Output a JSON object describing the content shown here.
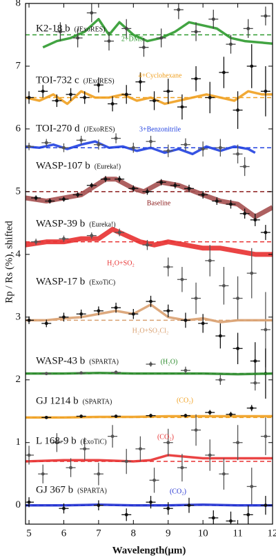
{
  "chart_data": {
    "type": "spectra",
    "xlabel": "Wavelength(μm)",
    "ylabel": "Rp / Rs (%), shifted",
    "xlim": [
      4.9,
      12
    ],
    "ylim": [
      -0.3,
      8
    ],
    "xticks": [
      5,
      6,
      7,
      8,
      9,
      10,
      11,
      12
    ],
    "yticks": [
      0,
      1,
      2,
      3,
      4,
      5,
      6,
      7,
      8
    ],
    "series": [
      {
        "name": "K2-18 b",
        "source": "(JExoRES)",
        "model": "2+DMS",
        "color": "#2e9a2e",
        "baseline": 7.5,
        "point_color": "#444",
        "model_x": [
          5.4,
          5.8,
          6.2,
          6.6,
          7.0,
          7.3,
          7.6,
          8.0,
          8.4,
          8.8,
          9.2,
          9.6,
          10.0,
          10.4,
          10.8,
          11.2,
          11.6,
          12.0
        ],
        "model_values": [
          7.3,
          7.4,
          7.45,
          7.55,
          7.75,
          7.5,
          7.7,
          7.5,
          7.4,
          7.45,
          7.55,
          7.7,
          7.65,
          7.6,
          7.45,
          7.4,
          7.38,
          7.36
        ],
        "x": [
          5.9,
          6.4,
          6.8,
          7.3,
          7.8,
          8.3,
          8.8,
          9.3,
          9.8,
          10.3,
          10.8,
          11.3,
          11.8
        ],
        "values": [
          7.55,
          7.45,
          7.85,
          7.4,
          7.6,
          7.3,
          7.45,
          7.9,
          7.55,
          7.75,
          7.35,
          7.6,
          7.8
        ],
        "errors": [
          0.15,
          0.15,
          0.15,
          0.15,
          0.15,
          0.15,
          0.15,
          0.15,
          0.15,
          0.15,
          0.15,
          0.15,
          0.15
        ]
      },
      {
        "name": "TOI-732 c",
        "source": "(JExoRES)",
        "model": "4+Cyclohexane",
        "color": "#f0a020",
        "baseline": 6.5,
        "point_color": "#111",
        "model_x": [
          4.9,
          5.3,
          5.7,
          6.1,
          6.5,
          6.9,
          7.3,
          7.7,
          8.1,
          8.5,
          8.9,
          9.3,
          9.7,
          10.1,
          10.5,
          10.9,
          11.3,
          11.7,
          12.0
        ],
        "model_values": [
          6.5,
          6.45,
          6.55,
          6.4,
          6.6,
          6.5,
          6.5,
          6.55,
          6.45,
          6.5,
          6.4,
          6.45,
          6.5,
          6.55,
          6.5,
          6.45,
          6.6,
          6.55,
          6.55
        ],
        "x": [
          5.0,
          5.4,
          5.8,
          6.2,
          6.6,
          7.0,
          7.4,
          7.8,
          8.2,
          8.6,
          9.0,
          9.4,
          9.8,
          10.2,
          10.6,
          11.0,
          11.4,
          11.8
        ],
        "values": [
          6.5,
          6.6,
          6.45,
          6.55,
          6.5,
          6.7,
          6.4,
          6.55,
          6.75,
          6.45,
          6.6,
          6.35,
          6.8,
          6.5,
          6.9,
          6.3,
          7.0,
          6.6
        ],
        "errors": [
          0.1,
          0.1,
          0.1,
          0.1,
          0.1,
          0.12,
          0.12,
          0.15,
          0.15,
          0.15,
          0.2,
          0.2,
          0.2,
          0.25,
          0.25,
          0.3,
          0.35,
          0.4
        ]
      },
      {
        "name": "TOI-270 d",
        "source": "(JExoRES)",
        "model": "3+Benzonitrile",
        "color": "#2040e0",
        "baseline": 5.7,
        "point_color": "#555",
        "model_x": [
          4.9,
          5.3,
          5.7,
          6.1,
          6.5,
          6.9,
          7.3,
          7.7,
          8.1,
          8.5,
          8.9,
          9.3,
          9.7,
          10.1,
          10.5,
          10.9,
          11.3,
          11.5
        ],
        "model_values": [
          5.72,
          5.7,
          5.75,
          5.68,
          5.75,
          5.8,
          5.7,
          5.72,
          5.65,
          5.7,
          5.62,
          5.68,
          5.6,
          5.72,
          5.65,
          5.72,
          5.68,
          5.62
        ],
        "x": [
          5.0,
          5.5,
          6.0,
          6.5,
          7.0,
          7.5,
          8.0,
          8.5,
          9.0,
          9.5,
          10.0,
          10.5,
          11.0,
          11.2
        ],
        "values": [
          5.72,
          5.78,
          5.7,
          5.82,
          5.75,
          5.85,
          5.7,
          5.8,
          5.65,
          5.75,
          5.68,
          5.7,
          5.6,
          5.4
        ],
        "errors": [
          0.06,
          0.06,
          0.07,
          0.07,
          0.08,
          0.08,
          0.08,
          0.09,
          0.1,
          0.1,
          0.12,
          0.14,
          0.15,
          0.15
        ]
      },
      {
        "name": "WASP-107 b",
        "source": "(Eureka!)",
        "model": "Baseline",
        "color": "#a55050",
        "baseline": 5.0,
        "point_color": "#111",
        "model_x": [
          4.9,
          5.5,
          6.5,
          7.2,
          7.5,
          8.0,
          8.3,
          8.8,
          9.3,
          10.0,
          10.5,
          11.0,
          11.5,
          12.0
        ],
        "model_values": [
          4.9,
          4.85,
          4.95,
          5.2,
          5.2,
          5.05,
          5.0,
          5.15,
          5.1,
          4.95,
          4.85,
          4.8,
          4.6,
          4.75
        ],
        "x": [
          5.2,
          5.6,
          6.0,
          6.4,
          6.8,
          7.2,
          7.6,
          8.0,
          8.4,
          8.8,
          9.2,
          9.6,
          10.0,
          10.4,
          10.8,
          11.2,
          11.5,
          11.8
        ],
        "values": [
          4.9,
          4.85,
          4.88,
          4.95,
          5.1,
          5.2,
          5.2,
          5.05,
          5.0,
          5.15,
          5.1,
          5.05,
          4.95,
          4.85,
          4.8,
          4.65,
          4.55,
          4.35
        ],
        "errors": [
          0.04,
          0.04,
          0.04,
          0.04,
          0.04,
          0.05,
          0.05,
          0.05,
          0.05,
          0.05,
          0.05,
          0.06,
          0.06,
          0.06,
          0.07,
          0.08,
          0.1,
          0.12
        ]
      },
      {
        "name": "WASP-39 b",
        "source": "(Eureka!)",
        "model": "H₂O+SO₂",
        "color": "#e83030",
        "baseline": 4.2,
        "point_color": "#555",
        "model_x": [
          4.9,
          5.5,
          6.0,
          6.5,
          7.0,
          7.4,
          7.8,
          8.2,
          8.6,
          9.0,
          9.5,
          10.0,
          10.5,
          11.0,
          11.5,
          12.0
        ],
        "model_values": [
          4.15,
          4.2,
          4.2,
          4.25,
          4.25,
          4.4,
          4.3,
          4.2,
          4.15,
          4.2,
          4.15,
          4.1,
          4.1,
          4.05,
          4.0,
          4.0
        ],
        "x": [
          5.2,
          6.0,
          6.8,
          7.6,
          8.4,
          9.0,
          9.4,
          9.8,
          10.2,
          10.6,
          11.0,
          11.4,
          11.8
        ],
        "values": [
          4.2,
          4.25,
          4.3,
          4.35,
          4.15,
          3.8,
          3.6,
          3.3,
          3.9,
          3.5,
          3.3,
          3.7,
          2.8
        ],
        "errors": [
          0.05,
          0.05,
          0.05,
          0.06,
          0.08,
          0.15,
          0.2,
          0.25,
          0.25,
          0.3,
          0.35,
          0.4,
          0.6
        ]
      },
      {
        "name": "WASP-17 b",
        "source": "(ExoTiC)",
        "model": "H₂O+SO₂Cl₂",
        "color": "#d9a070",
        "baseline": 2.95,
        "point_color": "#111",
        "model_x": [
          4.9,
          5.5,
          6.0,
          6.5,
          7.0,
          7.5,
          8.0,
          8.5,
          9.0,
          9.5,
          10.0,
          10.5,
          11.0,
          11.5,
          12.0
        ],
        "model_values": [
          2.95,
          2.95,
          2.98,
          3.0,
          3.05,
          3.1,
          3.05,
          3.2,
          3.0,
          2.95,
          2.98,
          2.92,
          2.95,
          2.95,
          2.95
        ],
        "x": [
          5.0,
          5.5,
          6.0,
          6.5,
          7.0,
          7.5,
          8.0,
          8.5,
          9.0,
          9.5,
          10.0,
          10.5,
          11.0,
          11.5,
          11.8
        ],
        "values": [
          2.95,
          2.9,
          3.0,
          3.05,
          3.1,
          3.15,
          3.05,
          3.25,
          3.1,
          2.95,
          2.9,
          2.7,
          2.5,
          2.3,
          2.1
        ],
        "errors": [
          0.06,
          0.06,
          0.07,
          0.07,
          0.07,
          0.08,
          0.08,
          0.09,
          0.1,
          0.12,
          0.15,
          0.2,
          0.25,
          0.3,
          0.4
        ]
      },
      {
        "name": "WASP-43 b",
        "source": "(SPARTA)",
        "model": "(H₂O)",
        "color": "#2a8a2a",
        "baseline": 2.1,
        "point_color": "#555",
        "model_x": [
          4.9,
          6,
          7,
          8,
          9,
          10,
          11,
          12
        ],
        "model_values": [
          2.1,
          2.1,
          2.11,
          2.1,
          2.1,
          2.1,
          2.09,
          2.1
        ],
        "x": [
          5.5,
          6.5,
          7.5,
          8.5,
          9.5,
          10.5,
          11.5
        ],
        "values": [
          2.1,
          2.11,
          2.12,
          2.25,
          2.15,
          2.0,
          1.95
        ],
        "errors": [
          0.02,
          0.02,
          0.03,
          0.04,
          0.06,
          0.08,
          0.12
        ]
      },
      {
        "name": "GJ 1214 b",
        "source": "(SPARTA)",
        "model": "(CO₂)",
        "color": "#f0a020",
        "baseline": 1.4,
        "point_color": "#111",
        "model_x": [
          4.9,
          6,
          7,
          8,
          9,
          10,
          11,
          12
        ],
        "model_values": [
          1.4,
          1.4,
          1.41,
          1.41,
          1.42,
          1.42,
          1.42,
          1.42
        ],
        "x": [
          5.5,
          6.5,
          7.5,
          8.5,
          9.5,
          10.2,
          10.8,
          11.4
        ],
        "values": [
          1.4,
          1.42,
          1.42,
          1.43,
          1.43,
          1.48,
          1.45,
          1.55
        ],
        "errors": [
          0.02,
          0.02,
          0.02,
          0.03,
          0.03,
          0.04,
          0.04,
          0.05
        ]
      },
      {
        "name": "L 168-9 b",
        "source": "(ExoTiC)",
        "model": "(CO₂)",
        "color": "#e83030",
        "baseline": 0.7,
        "point_color": "#555",
        "model_x": [
          4.9,
          6,
          7,
          8,
          8.5,
          9,
          10,
          11,
          12
        ],
        "model_values": [
          0.7,
          0.72,
          0.72,
          0.7,
          0.72,
          0.8,
          0.75,
          0.75,
          0.75
        ],
        "x": [
          5.0,
          5.4,
          5.8,
          6.2,
          6.6,
          7.0,
          7.4,
          7.8,
          8.2,
          8.6,
          9.0,
          9.4,
          9.8,
          10.2,
          10.6,
          11.0,
          11.4,
          11.8
        ],
        "values": [
          0.8,
          0.5,
          1.0,
          0.6,
          0.9,
          0.5,
          1.1,
          0.7,
          0.9,
          0.4,
          1.0,
          0.6,
          1.2,
          0.8,
          0.5,
          1.0,
          0.3,
          1.1
        ],
        "errors": [
          0.15,
          0.15,
          0.15,
          0.15,
          0.18,
          0.18,
          0.18,
          0.2,
          0.2,
          0.2,
          0.22,
          0.22,
          0.25,
          0.25,
          0.25,
          0.28,
          0.3,
          0.3
        ]
      },
      {
        "name": "GJ 367 b",
        "source": "(SPARTA)",
        "model": "(CO₂)",
        "color": "#2030d0",
        "baseline": 0.0,
        "point_color": "#111",
        "model_x": [
          4.9,
          6,
          7,
          8,
          9,
          10,
          11,
          12
        ],
        "model_values": [
          0.0,
          0.0,
          0.01,
          0.0,
          0.0,
          0.01,
          0.0,
          0.0
        ],
        "x": [
          5.0,
          6.0,
          7.0,
          7.8,
          8.5,
          9.0,
          9.6,
          10.3,
          10.8,
          11.3,
          11.8
        ],
        "values": [
          0.05,
          -0.05,
          0.0,
          -0.15,
          0.05,
          -0.05,
          0.0,
          -0.2,
          -0.25,
          -0.15,
          0.0
        ],
        "errors": [
          0.08,
          0.08,
          0.08,
          0.1,
          0.1,
          0.1,
          0.12,
          0.12,
          0.15,
          0.15,
          0.15
        ]
      }
    ]
  }
}
